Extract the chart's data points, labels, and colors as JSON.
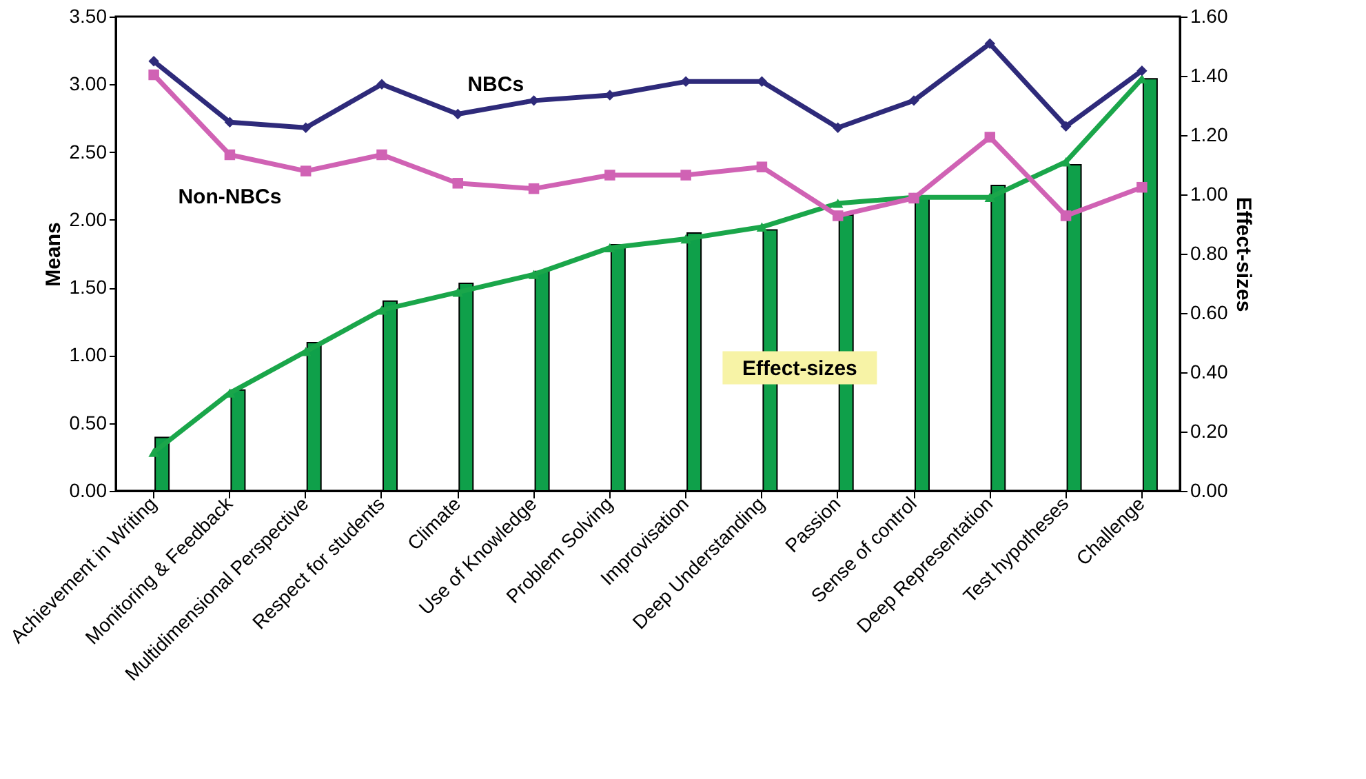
{
  "chart_data": {
    "type": "line",
    "categories": [
      "Achievement in Writing",
      "Monitoring &  Feedback",
      "Multidimensional Perspective",
      "Respect  for students",
      "Climate",
      "Use of Knowledge",
      "Problem Solving",
      "Improvisation",
      "Deep Understanding",
      "Passion",
      "Sense of  control",
      "Deep Representation",
      "Test hypotheses",
      "Challenge"
    ],
    "series": [
      {
        "name": "NBCs",
        "color": "#2e2a7a",
        "marker": "diamond",
        "values": [
          3.17,
          2.72,
          2.68,
          3.0,
          2.78,
          2.88,
          2.92,
          3.02,
          3.02,
          2.68,
          2.88,
          3.3,
          2.69,
          3.1
        ]
      },
      {
        "name": "Non-NBCs",
        "color": "#d062b4",
        "marker": "square",
        "values": [
          3.07,
          2.48,
          2.36,
          2.48,
          2.27,
          2.23,
          2.33,
          2.33,
          2.39,
          2.03,
          2.16,
          2.61,
          2.03,
          2.24
        ]
      },
      {
        "name": "Effect-sizes",
        "type": "bar",
        "axis": "y2",
        "color": "#0fa04a",
        "values": [
          0.18,
          0.34,
          0.5,
          0.64,
          0.7,
          0.74,
          0.83,
          0.87,
          0.88,
          0.93,
          0.99,
          1.03,
          1.1,
          1.39
        ]
      },
      {
        "axis": "y2",
        "color": "#1aa64a",
        "marker": "triangle",
        "values": [
          0.13,
          0.33,
          0.47,
          0.61,
          0.67,
          0.73,
          0.82,
          0.85,
          0.89,
          0.97,
          0.99,
          0.99,
          1.11,
          1.39
        ]
      }
    ],
    "ylabel": "Means",
    "y2label": "Effect-sizes",
    "ylim": [
      0,
      3.5
    ],
    "yticks": [
      {
        "value": 0,
        "label": "0.00"
      },
      {
        "value": 0.5,
        "label": "0.50"
      },
      {
        "value": 1,
        "label": "1.00"
      },
      {
        "value": 1.5,
        "label": "1.50"
      },
      {
        "value": 2,
        "label": "2.00"
      },
      {
        "value": 2.5,
        "label": "2.50"
      },
      {
        "value": 3,
        "label": "3.00"
      },
      {
        "value": 3.5,
        "label": "3.50"
      }
    ],
    "y2lim": [
      0,
      1.6
    ],
    "y2ticks": [
      {
        "value": 0,
        "label": "0.00"
      },
      {
        "value": 0.2,
        "label": "0.20"
      },
      {
        "value": 0.4,
        "label": "0.40"
      },
      {
        "value": 0.6,
        "label": "0.60"
      },
      {
        "value": 0.8,
        "label": "0.80"
      },
      {
        "value": 1,
        "label": "1.00"
      },
      {
        "value": 1.2,
        "label": "1.20"
      },
      {
        "value": 1.4,
        "label": "1.40"
      },
      {
        "value": 1.6,
        "label": "1.60"
      }
    ],
    "grid": false
  }
}
